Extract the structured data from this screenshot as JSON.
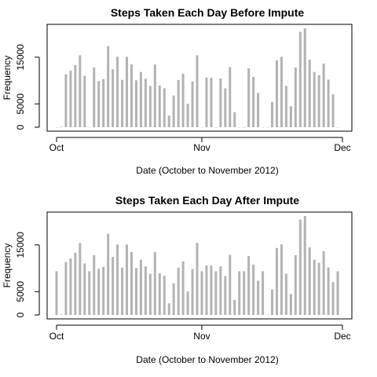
{
  "chart_data": [
    {
      "type": "bar",
      "title": "Steps Taken Each Day Before Impute",
      "xlabel": "Date (October to November 2012)",
      "ylabel": "Frequency",
      "x_ticks": [
        "Oct",
        "Nov",
        "Dec"
      ],
      "y_ticks": [
        0,
        5000,
        15000
      ],
      "ylim": [
        0,
        21194
      ],
      "grid": false,
      "series": [
        {
          "x": [
            "2012-10-01",
            "2012-10-02",
            "2012-10-03",
            "2012-10-04",
            "2012-10-05",
            "2012-10-06",
            "2012-10-07",
            "2012-10-08",
            "2012-10-09",
            "2012-10-10",
            "2012-10-11",
            "2012-10-12",
            "2012-10-13",
            "2012-10-14",
            "2012-10-15",
            "2012-10-16",
            "2012-10-17",
            "2012-10-18",
            "2012-10-19",
            "2012-10-20",
            "2012-10-21",
            "2012-10-22",
            "2012-10-23",
            "2012-10-24",
            "2012-10-25",
            "2012-10-26",
            "2012-10-27",
            "2012-10-28",
            "2012-10-29",
            "2012-10-30",
            "2012-10-31",
            "2012-11-01",
            "2012-11-02",
            "2012-11-03",
            "2012-11-04",
            "2012-11-05",
            "2012-11-06",
            "2012-11-07",
            "2012-11-08",
            "2012-11-09",
            "2012-11-10",
            "2012-11-11",
            "2012-11-12",
            "2012-11-13",
            "2012-11-14",
            "2012-11-15",
            "2012-11-16",
            "2012-11-17",
            "2012-11-18",
            "2012-11-19",
            "2012-11-20",
            "2012-11-21",
            "2012-11-22",
            "2012-11-23",
            "2012-11-24",
            "2012-11-25",
            "2012-11-26",
            "2012-11-27",
            "2012-11-28",
            "2012-11-29",
            "2012-11-30"
          ],
          "values": [
            0,
            126,
            11352,
            12116,
            13294,
            15420,
            11015,
            0,
            12811,
            9900,
            10304,
            17382,
            12426,
            15098,
            10139,
            15084,
            13452,
            10056,
            11829,
            10395,
            8821,
            13460,
            8918,
            8355,
            2492,
            6778,
            10119,
            11458,
            5018,
            9819,
            15414,
            0,
            10600,
            10571,
            0,
            10439,
            8334,
            12883,
            3219,
            0,
            0,
            12608,
            10765,
            7336,
            0,
            41,
            5441,
            14339,
            15110,
            8841,
            4472,
            12787,
            20427,
            21194,
            14478,
            11834,
            11162,
            13646,
            10183,
            7047,
            0
          ]
        }
      ]
    },
    {
      "type": "bar",
      "title": "Steps Taken Each Day After Impute",
      "xlabel": "Date (October to November 2012)",
      "ylabel": "Frequency",
      "x_ticks": [
        "Oct",
        "Nov",
        "Dec"
      ],
      "y_ticks": [
        0,
        5000,
        15000
      ],
      "ylim": [
        0,
        21194
      ],
      "grid": false,
      "series": [
        {
          "x": [
            "2012-10-01",
            "2012-10-02",
            "2012-10-03",
            "2012-10-04",
            "2012-10-05",
            "2012-10-06",
            "2012-10-07",
            "2012-10-08",
            "2012-10-09",
            "2012-10-10",
            "2012-10-11",
            "2012-10-12",
            "2012-10-13",
            "2012-10-14",
            "2012-10-15",
            "2012-10-16",
            "2012-10-17",
            "2012-10-18",
            "2012-10-19",
            "2012-10-20",
            "2012-10-21",
            "2012-10-22",
            "2012-10-23",
            "2012-10-24",
            "2012-10-25",
            "2012-10-26",
            "2012-10-27",
            "2012-10-28",
            "2012-10-29",
            "2012-10-30",
            "2012-10-31",
            "2012-11-01",
            "2012-11-02",
            "2012-11-03",
            "2012-11-04",
            "2012-11-05",
            "2012-11-06",
            "2012-11-07",
            "2012-11-08",
            "2012-11-09",
            "2012-11-10",
            "2012-11-11",
            "2012-11-12",
            "2012-11-13",
            "2012-11-14",
            "2012-11-15",
            "2012-11-16",
            "2012-11-17",
            "2012-11-18",
            "2012-11-19",
            "2012-11-20",
            "2012-11-21",
            "2012-11-22",
            "2012-11-23",
            "2012-11-24",
            "2012-11-25",
            "2012-11-26",
            "2012-11-27",
            "2012-11-28",
            "2012-11-29",
            "2012-11-30"
          ],
          "values": [
            9354,
            126,
            11352,
            12116,
            13294,
            15420,
            11015,
            9354,
            12811,
            9900,
            10304,
            17382,
            12426,
            15098,
            10139,
            15084,
            13452,
            10056,
            11829,
            10395,
            8821,
            13460,
            8918,
            8355,
            2492,
            6778,
            10119,
            11458,
            5018,
            9819,
            15414,
            9354,
            10600,
            10571,
            9354,
            10439,
            8334,
            12883,
            3219,
            9354,
            9354,
            12608,
            10765,
            7336,
            9354,
            41,
            5441,
            14339,
            15110,
            8841,
            4472,
            12787,
            20427,
            21194,
            14478,
            11834,
            11162,
            13646,
            10183,
            7047,
            9354
          ]
        }
      ]
    }
  ]
}
